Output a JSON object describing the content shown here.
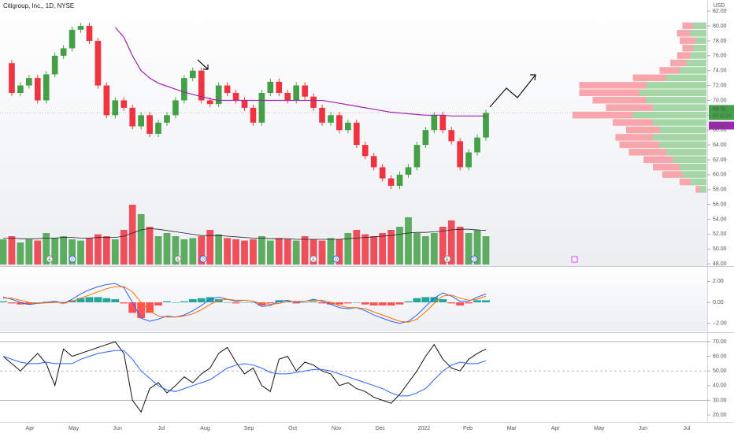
{
  "header": {
    "title": "Citigroup, Inc., 1D, NYSE",
    "currency": "USD"
  },
  "time_axis": {
    "categories": [
      "Apr",
      "May",
      "Jun",
      "Jul",
      "Aug",
      "Sep",
      "Oct",
      "Nov",
      "Dec",
      "2022",
      "Feb",
      "Mar",
      "Apr",
      "May",
      "Jun",
      "Jul"
    ]
  },
  "chart_data": [
    {
      "type": "candlestick",
      "up_color": "#43a047",
      "down_color": "#ef3340",
      "values": [
        75,
        71,
        72,
        73,
        70,
        73.5,
        76,
        77,
        79.5,
        80,
        78,
        72,
        68,
        70,
        69,
        66.5,
        68,
        65.5,
        67,
        68,
        70,
        73,
        74,
        70,
        69.5,
        72,
        71,
        70,
        69,
        67,
        71,
        72.5,
        71,
        70,
        72,
        70.5,
        69,
        67,
        68,
        66,
        67,
        64,
        62.5,
        61,
        59.5,
        58.5,
        60,
        61,
        64,
        66,
        68,
        66,
        64.5,
        61,
        63,
        65,
        68.31
      ],
      "ma": {
        "color": "#9c27b0",
        "values": [
          null,
          null,
          null,
          null,
          null,
          null,
          null,
          null,
          null,
          null,
          null,
          null,
          null,
          79.8,
          78.5,
          76,
          74,
          73,
          72.3,
          71.9,
          71.5,
          71.1,
          70.8,
          70.5,
          70.2,
          70,
          70,
          70,
          70,
          70,
          70,
          70,
          70,
          70,
          70,
          70,
          70,
          70,
          69.8,
          69.6,
          69.4,
          69.2,
          69,
          68.8,
          68.6,
          68.4,
          68.3,
          68.2,
          68.1,
          68,
          68,
          68,
          67.9,
          67.9,
          67.9,
          67.9,
          67.88
        ]
      },
      "last_price": 68.31,
      "countdown": "00:11:20",
      "ma_last": 67.88,
      "ylim": [
        47.7,
        83.5
      ],
      "yticks": [
        {
          "value": 48,
          "label": "48.00"
        },
        {
          "value": 50,
          "label": "50.00"
        },
        {
          "value": 52,
          "label": "52.00"
        },
        {
          "value": 54,
          "label": "54.00"
        },
        {
          "value": 56,
          "label": "56.00"
        },
        {
          "value": 58,
          "label": "58.00"
        },
        {
          "value": 60,
          "label": "60.00"
        },
        {
          "value": 62,
          "label": "62.00"
        },
        {
          "value": 64,
          "label": "64.00"
        },
        {
          "value": 66,
          "label": "66.00"
        },
        {
          "value": 68,
          "label": "68.00"
        },
        {
          "value": 70,
          "label": "70.00"
        },
        {
          "value": 72,
          "label": "72.00"
        },
        {
          "value": 74,
          "label": "74.00"
        },
        {
          "value": 76,
          "label": "76.00"
        },
        {
          "value": 78,
          "label": "78.00"
        },
        {
          "value": 80,
          "label": "80.00"
        },
        {
          "value": 82,
          "label": "82.00"
        }
      ]
    },
    {
      "type": "bar",
      "ylim": [
        0,
        100
      ],
      "values": [
        40,
        45,
        35,
        40,
        38,
        50,
        42,
        45,
        40,
        38,
        42,
        48,
        45,
        40,
        55,
        95,
        80,
        60,
        45,
        50,
        45,
        40,
        42,
        45,
        55,
        48,
        42,
        40,
        38,
        40,
        45,
        38,
        42,
        40,
        38,
        45,
        40,
        38,
        42,
        40,
        50,
        55,
        48,
        45,
        50,
        55,
        60,
        75,
        50,
        45,
        50,
        60,
        70,
        60,
        50,
        55,
        45
      ],
      "ma": {
        "color": "#222222",
        "values": [
          42,
          42,
          41,
          41,
          41,
          42,
          42,
          43,
          43,
          42,
          42,
          43,
          43,
          43,
          45,
          50,
          55,
          57,
          56,
          54,
          52,
          50,
          48,
          46,
          46,
          46,
          45,
          44,
          43,
          42,
          42,
          41,
          41,
          41,
          40,
          40,
          40,
          40,
          40,
          40,
          41,
          42,
          43,
          44,
          45,
          46,
          48,
          50,
          51,
          51,
          52,
          53,
          55,
          56,
          56,
          55,
          54
        ]
      },
      "event_labels": [
        "E",
        "D",
        "E",
        "D",
        "E",
        "D",
        "E",
        "D"
      ]
    },
    {
      "type": "line",
      "ylim": [
        -2.77,
        3.38
      ],
      "yticks": [
        {
          "value": 2,
          "label": "2.00"
        },
        {
          "value": 0,
          "label": "0.00"
        },
        {
          "value": -2,
          "label": "−2.00"
        }
      ],
      "series": [
        {
          "color": "#2962ff",
          "values": [
            0.5,
            0.3,
            0,
            -0.2,
            -0.1,
            0,
            0.1,
            -0.1,
            0.3,
            0.8,
            1.2,
            1.5,
            1.7,
            1.8,
            1.4,
            0,
            -1.5,
            -1.8,
            -1.6,
            -1.3,
            -1.4,
            -1.2,
            -0.8,
            -0.3,
            0.3,
            0.5,
            0.3,
            0.1,
            0.2,
            0.1,
            -0.4,
            -0.3,
            0.1,
            0.2,
            0,
            0.1,
            0.3,
            0.1,
            -0.2,
            -0.5,
            -0.6,
            -0.5,
            -0.8,
            -1.2,
            -1.5,
            -1.8,
            -2,
            -1.8,
            -1.2,
            -0.4,
            0.4,
            0.9,
            0.6,
            0.1,
            0.1,
            0.5,
            0.8
          ]
        },
        {
          "color": "#ff6d00",
          "values": [
            0.4,
            0.4,
            0.2,
            0,
            -0.1,
            -0.05,
            0,
            0,
            0.1,
            0.4,
            0.7,
            1,
            1.3,
            1.5,
            1.5,
            1,
            0,
            -0.8,
            -1.3,
            -1.4,
            -1.4,
            -1.3,
            -1.1,
            -0.7,
            -0.2,
            0.2,
            0.3,
            0.2,
            0.2,
            0.1,
            -0.1,
            -0.2,
            -0.1,
            0.1,
            0.1,
            0.1,
            0.2,
            0.2,
            0,
            -0.3,
            -0.5,
            -0.5,
            -0.6,
            -0.9,
            -1.2,
            -1.5,
            -1.8,
            -1.9,
            -1.6,
            -0.9,
            -0.1,
            0.6,
            0.7,
            0.4,
            0.2,
            0.3,
            0.6
          ]
        }
      ],
      "histogram": {
        "up_color": "#26a69a",
        "down_color": "#ff5252",
        "values": [
          0.1,
          -0.1,
          -0.2,
          -0.2,
          0,
          0.05,
          0.1,
          -0.1,
          0.2,
          0.4,
          0.5,
          0.5,
          0.4,
          0.3,
          -0.1,
          -1,
          -1.5,
          -1,
          -0.3,
          0.1,
          0,
          0.1,
          0.3,
          0.4,
          0.5,
          0.3,
          0,
          -0.1,
          0,
          0,
          -0.3,
          -0.1,
          0.2,
          0.1,
          -0.1,
          0,
          0.1,
          -0.1,
          -0.2,
          -0.2,
          -0.1,
          0,
          -0.2,
          -0.3,
          -0.3,
          -0.3,
          -0.2,
          0.1,
          0.4,
          0.5,
          0.5,
          0.3,
          -0.1,
          -0.3,
          -0.1,
          0.2,
          0.2
        ]
      }
    },
    {
      "type": "line",
      "ylim": [
        15.2,
        75.9
      ],
      "yticks": [
        {
          "value": 20,
          "label": "20.00"
        },
        {
          "value": 30,
          "label": "30.00"
        },
        {
          "value": 40,
          "label": "40.00"
        },
        {
          "value": 50,
          "label": "50.00"
        },
        {
          "value": 60,
          "label": "60.00"
        },
        {
          "value": 70,
          "label": "70.00"
        }
      ],
      "bands": [
        70,
        50,
        30
      ],
      "series": [
        {
          "color": "#111111",
          "values": [
            60,
            55,
            50,
            56,
            62,
            55,
            40,
            65,
            60,
            62,
            64,
            66,
            68,
            70,
            62,
            30,
            22,
            38,
            42,
            35,
            40,
            46,
            42,
            48,
            52,
            62,
            66,
            56,
            48,
            52,
            40,
            36,
            58,
            60,
            50,
            56,
            54,
            50,
            48,
            40,
            42,
            38,
            36,
            32,
            30,
            28,
            34,
            42,
            50,
            60,
            68,
            58,
            52,
            50,
            58,
            62,
            65
          ]
        },
        {
          "color": "#2962ff",
          "values": [
            60,
            58,
            56,
            55,
            55,
            56,
            55,
            55,
            55,
            58,
            60,
            62,
            63,
            64,
            64,
            58,
            50,
            45,
            40,
            37,
            36,
            38,
            40,
            42,
            44,
            48,
            52,
            54,
            55,
            54,
            52,
            49,
            48,
            48,
            49,
            50,
            51,
            51,
            50,
            48,
            46,
            44,
            42,
            40,
            38,
            35,
            33,
            33,
            35,
            38,
            44,
            50,
            54,
            56,
            55,
            55,
            57
          ]
        }
      ]
    },
    {
      "type": "volume_profile",
      "xlim": [
        0,
        100
      ],
      "up_color": "#a5d6a7",
      "down_color": "#f8a5ab",
      "levels": [
        80,
        79,
        78,
        77,
        76,
        75,
        74,
        73,
        72,
        71,
        70,
        69,
        68,
        67,
        66,
        65,
        64,
        63,
        62,
        61,
        60,
        59,
        58
      ],
      "up": [
        10,
        12,
        8,
        10,
        12,
        15,
        20,
        30,
        45,
        50,
        45,
        40,
        55,
        40,
        35,
        40,
        35,
        30,
        25,
        20,
        18,
        12,
        5
      ],
      "down": [
        8,
        10,
        12,
        8,
        10,
        12,
        15,
        25,
        50,
        45,
        40,
        35,
        45,
        30,
        25,
        28,
        30,
        28,
        22,
        20,
        15,
        8,
        3
      ]
    }
  ]
}
